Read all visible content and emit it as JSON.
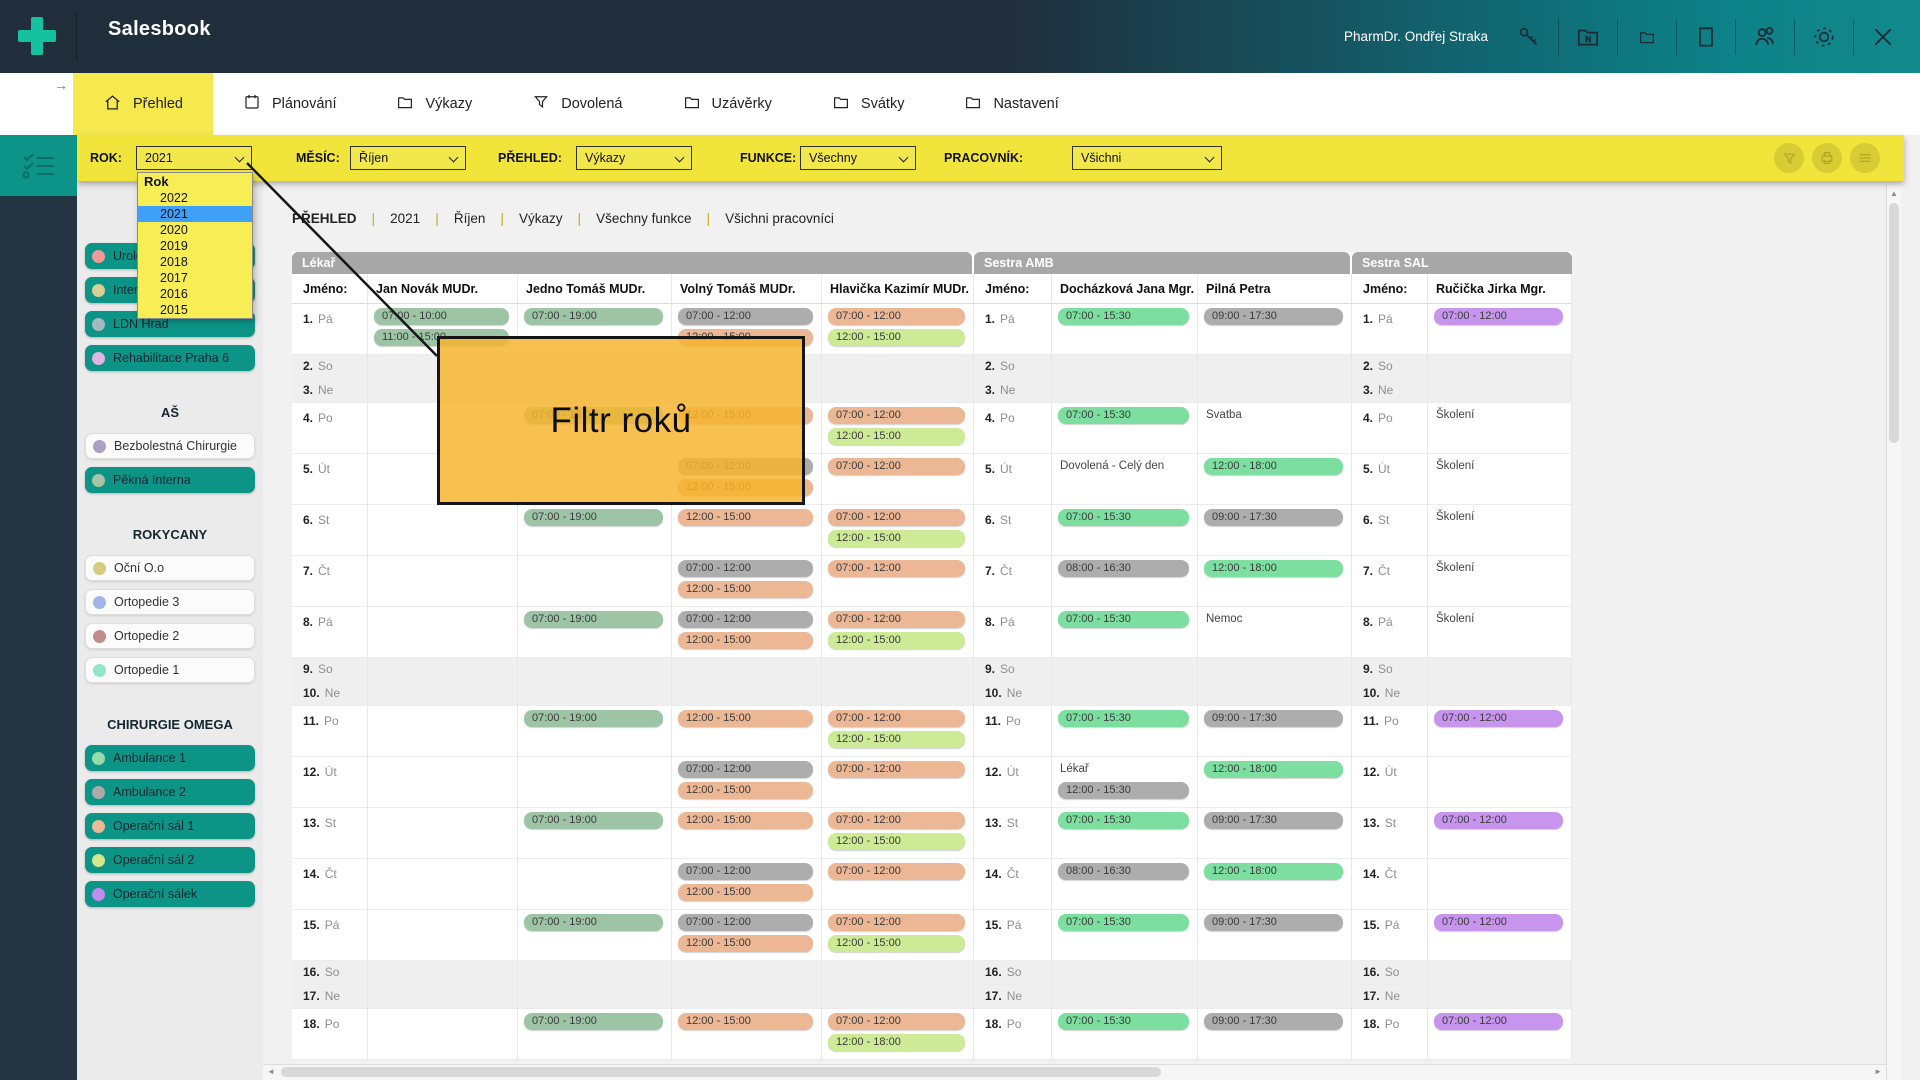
{
  "titlebar": {
    "app_title": "Salesbook",
    "user_name": "PharmDr. Ondřej Straka",
    "icons": [
      "key",
      "folder-new",
      "folder",
      "frame",
      "users",
      "gear",
      "close"
    ]
  },
  "tabs": {
    "items": [
      {
        "label": "Přehled",
        "icon": "home",
        "active": true
      },
      {
        "label": "Plánování",
        "icon": "calendar",
        "active": false
      },
      {
        "label": "Výkazy",
        "icon": "folder",
        "active": false
      },
      {
        "label": "Dovolená",
        "icon": "funnel",
        "active": false
      },
      {
        "label": "Uzávěrky",
        "icon": "folder",
        "active": false
      },
      {
        "label": "Svátky",
        "icon": "folder",
        "active": false
      },
      {
        "label": "Nastavení",
        "icon": "folder",
        "active": false
      }
    ]
  },
  "filterbar": {
    "filters": [
      {
        "label": "ROK:",
        "value": "2021"
      },
      {
        "label": "MĚSÍC:",
        "value": "Říjen"
      },
      {
        "label": "PŘEHLED:",
        "value": "Výkazy"
      },
      {
        "label": "FUNKCE:",
        "value": "Všechny"
      },
      {
        "label": "PRACOVNÍK:",
        "value": "Všichni"
      }
    ],
    "action_icons": [
      "filter",
      "print",
      "menu"
    ]
  },
  "year_dropdown": {
    "header": "Rok",
    "options": [
      "2022",
      "2021",
      "2020",
      "2019",
      "2018",
      "2017",
      "2016",
      "2015"
    ],
    "selected": "2021",
    "selected_color": "#3ea0f7"
  },
  "tooltip": {
    "text": "Filtr roků",
    "color": "#f7b42c"
  },
  "sidebar": {
    "groups": [
      {
        "title": null,
        "items": [
          {
            "label": "Urologie",
            "dot": "#f19a9a",
            "active": true
          },
          {
            "label": "Interna",
            "dot": "#d9cf96",
            "active": true
          },
          {
            "label": "LDN Hrad",
            "dot": "#a3bac1",
            "active": true
          },
          {
            "label": "Rehabilitace Praha 6",
            "dot": "#e0b6e0",
            "active": true
          }
        ]
      },
      {
        "title": "AŠ",
        "items": [
          {
            "label": "Bezbolestná Chirurgie",
            "dot": "#aa9fc6",
            "active": false
          },
          {
            "label": "Pěkná Interna",
            "dot": "#a8c2a8",
            "active": true
          }
        ]
      },
      {
        "title": "ROKYCANY",
        "items": [
          {
            "label": "Oční O.o",
            "dot": "#d6cb80",
            "active": false
          },
          {
            "label": "Ortopedie 3",
            "dot": "#a2b5ea",
            "active": false
          },
          {
            "label": "Ortopedie 2",
            "dot": "#bf8d8d",
            "active": false
          },
          {
            "label": "Ortopedie 1",
            "dot": "#92e5ca",
            "active": false
          }
        ]
      },
      {
        "title": "CHIRURGIE OMEGA",
        "items": [
          {
            "label": "Ambulance 1",
            "dot": "#96dcab",
            "active": true
          },
          {
            "label": "Ambulance 2",
            "dot": "#ababab",
            "active": true
          },
          {
            "label": "Operační sál 1",
            "dot": "#eabb97",
            "active": true
          },
          {
            "label": "Operační sál 2",
            "dot": "#d2e68d",
            "active": true
          },
          {
            "label": "Operační sálek",
            "dot": "#c28df0",
            "active": true
          }
        ]
      }
    ]
  },
  "breadcrumb": {
    "separator": "|",
    "items": [
      "PŘEHLED",
      "2021",
      "Říjen",
      "Výkazy",
      "Všechny funkce",
      "Všichni pracovníci"
    ]
  },
  "schedule": {
    "day_header": "Jméno:",
    "groups": [
      {
        "label": "Lékař",
        "members": [
          0,
          1,
          2,
          3
        ]
      },
      {
        "label": "Sestra AMB",
        "members": [
          4,
          5
        ]
      },
      {
        "label": "Sestra SAL",
        "members": [
          6
        ]
      }
    ],
    "days": [
      {
        "n": "1.",
        "d": "Pá",
        "weekend": false
      },
      {
        "n": "2.",
        "d": "So",
        "weekend": true
      },
      {
        "n": "3.",
        "d": "Ne",
        "weekend": true
      },
      {
        "n": "4.",
        "d": "Po",
        "weekend": false
      },
      {
        "n": "5.",
        "d": "Út",
        "weekend": false
      },
      {
        "n": "6.",
        "d": "St",
        "weekend": false
      },
      {
        "n": "7.",
        "d": "Čt",
        "weekend": false
      },
      {
        "n": "8.",
        "d": "Pá",
        "weekend": false
      },
      {
        "n": "9.",
        "d": "So",
        "weekend": true
      },
      {
        "n": "10.",
        "d": "Ne",
        "weekend": true
      },
      {
        "n": "11.",
        "d": "Po",
        "weekend": false
      },
      {
        "n": "12.",
        "d": "Út",
        "weekend": false
      },
      {
        "n": "13.",
        "d": "St",
        "weekend": false
      },
      {
        "n": "14.",
        "d": "Čt",
        "weekend": false
      },
      {
        "n": "15.",
        "d": "Pá",
        "weekend": false
      },
      {
        "n": "16.",
        "d": "So",
        "weekend": true
      },
      {
        "n": "17.",
        "d": "Ne",
        "weekend": true
      },
      {
        "n": "18.",
        "d": "Po",
        "weekend": false
      }
    ],
    "colors": {
      "sage": "#9dc4a5",
      "green": "#7cdfa0",
      "gray": "#adadad",
      "salmon": "#ecb795",
      "lime": "#cdea96",
      "purple": "#c795ee"
    },
    "employees": [
      {
        "name": "Jan Novák MUDr.",
        "entries": {
          "1": [
            [
              "07:00 - 10:00",
              "sage"
            ],
            [
              "11:00 - 15:00",
              "sage"
            ]
          ]
        }
      },
      {
        "name": "Jedno Tomáš MUDr.",
        "entries": {
          "1": [
            [
              "07:00 - 19:00",
              "sage"
            ]
          ],
          "4": [
            [
              "07:00 - 19:00",
              "sage"
            ]
          ],
          "6": [
            [
              "07:00 - 19:00",
              "sage"
            ]
          ],
          "8": [
            [
              "07:00 - 19:00",
              "sage"
            ]
          ],
          "11": [
            [
              "07:00 - 19:00",
              "sage"
            ]
          ],
          "13": [
            [
              "07:00 - 19:00",
              "sage"
            ]
          ],
          "15": [
            [
              "07:00 - 19:00",
              "sage"
            ]
          ],
          "18": [
            [
              "07:00 - 19:00",
              "sage"
            ]
          ]
        }
      },
      {
        "name": "Volný Tomáš MUDr.",
        "entries": {
          "1": [
            [
              "07:00 - 12:00",
              "gray"
            ],
            [
              "12:00 - 15:00",
              "salmon"
            ]
          ],
          "4": [
            [
              "12:00 - 15:00",
              "salmon"
            ]
          ],
          "5": [
            [
              "07:00 - 12:00",
              "gray"
            ],
            [
              "12:00 - 15:00",
              "salmon"
            ]
          ],
          "6": [
            [
              "12:00 - 15:00",
              "salmon"
            ]
          ],
          "7": [
            [
              "07:00 - 12:00",
              "gray"
            ],
            [
              "12:00 - 15:00",
              "salmon"
            ]
          ],
          "8": [
            [
              "07:00 - 12:00",
              "gray"
            ],
            [
              "12:00 - 15:00",
              "salmon"
            ]
          ],
          "11": [
            [
              "12:00 - 15:00",
              "salmon"
            ]
          ],
          "12": [
            [
              "07:00 - 12:00",
              "gray"
            ],
            [
              "12:00 - 15:00",
              "salmon"
            ]
          ],
          "13": [
            [
              "12:00 - 15:00",
              "salmon"
            ]
          ],
          "14": [
            [
              "07:00 - 12:00",
              "gray"
            ],
            [
              "12:00 - 15:00",
              "salmon"
            ]
          ],
          "15": [
            [
              "07:00 - 12:00",
              "gray"
            ],
            [
              "12:00 - 15:00",
              "salmon"
            ]
          ],
          "18": [
            [
              "12:00 - 15:00",
              "salmon"
            ]
          ]
        }
      },
      {
        "name": "Hlavička Kazimír MUDr.",
        "entries": {
          "1": [
            [
              "07:00 - 12:00",
              "salmon"
            ],
            [
              "12:00 - 15:00",
              "lime"
            ]
          ],
          "4": [
            [
              "07:00 - 12:00",
              "salmon"
            ],
            [
              "12:00 - 15:00",
              "lime"
            ]
          ],
          "5": [
            [
              "07:00 - 12:00",
              "salmon"
            ]
          ],
          "6": [
            [
              "07:00 - 12:00",
              "salmon"
            ],
            [
              "12:00 - 15:00",
              "lime"
            ]
          ],
          "7": [
            [
              "07:00 - 12:00",
              "salmon"
            ]
          ],
          "8": [
            [
              "07:00 - 12:00",
              "salmon"
            ],
            [
              "12:00 - 15:00",
              "lime"
            ]
          ],
          "11": [
            [
              "07:00 - 12:00",
              "salmon"
            ],
            [
              "12:00 - 15:00",
              "lime"
            ]
          ],
          "12": [
            [
              "07:00 - 12:00",
              "salmon"
            ]
          ],
          "13": [
            [
              "07:00 - 12:00",
              "salmon"
            ],
            [
              "12:00 - 15:00",
              "lime"
            ]
          ],
          "14": [
            [
              "07:00 - 12:00",
              "salmon"
            ]
          ],
          "15": [
            [
              "07:00 - 12:00",
              "salmon"
            ],
            [
              "12:00 - 15:00",
              "lime"
            ]
          ],
          "18": [
            [
              "07:00 - 12:00",
              "salmon"
            ],
            [
              "12:00 - 18:00",
              "lime"
            ]
          ]
        }
      },
      {
        "name": "Docházková Jana Mgr.",
        "entries": {
          "1": [
            [
              "07:00 - 15:30",
              "green"
            ]
          ],
          "4": [
            [
              "07:00 - 15:30",
              "green"
            ]
          ],
          "5": [
            [
              "Dovolená - Celý den",
              "text"
            ]
          ],
          "6": [
            [
              "07:00 - 15:30",
              "green"
            ]
          ],
          "7": [
            [
              "08:00 - 16:30",
              "gray"
            ]
          ],
          "8": [
            [
              "07:00 - 15:30",
              "green"
            ]
          ],
          "11": [
            [
              "07:00 - 15:30",
              "green"
            ]
          ],
          "12": [
            [
              "Lékař",
              "text"
            ],
            [
              "12:00 - 15:30",
              "gray"
            ]
          ],
          "13": [
            [
              "07:00 - 15:30",
              "green"
            ]
          ],
          "14": [
            [
              "08:00 - 16:30",
              "gray"
            ]
          ],
          "15": [
            [
              "07:00 - 15:30",
              "green"
            ]
          ],
          "18": [
            [
              "07:00 - 15:30",
              "green"
            ]
          ]
        }
      },
      {
        "name": "Pilná Petra",
        "entries": {
          "1": [
            [
              "09:00 - 17:30",
              "gray"
            ]
          ],
          "4": [
            [
              "Svatba",
              "text"
            ]
          ],
          "5": [
            [
              "12:00 - 18:00",
              "green"
            ]
          ],
          "6": [
            [
              "09:00 - 17:30",
              "gray"
            ]
          ],
          "7": [
            [
              "12:00 - 18:00",
              "green"
            ]
          ],
          "8": [
            [
              "Nemoc",
              "text"
            ]
          ],
          "11": [
            [
              "09:00 - 17:30",
              "gray"
            ]
          ],
          "12": [
            [
              "12:00 - 18:00",
              "green"
            ]
          ],
          "13": [
            [
              "09:00 - 17:30",
              "gray"
            ]
          ],
          "14": [
            [
              "12:00 - 18:00",
              "green"
            ]
          ],
          "15": [
            [
              "09:00 - 17:30",
              "gray"
            ]
          ],
          "18": [
            [
              "09:00 - 17:30",
              "gray"
            ]
          ]
        }
      },
      {
        "name": "Ručička Jirka Mgr.",
        "entries": {
          "1": [
            [
              "07:00 - 12:00",
              "purple"
            ]
          ],
          "4": [
            [
              "Školení",
              "text"
            ]
          ],
          "5": [
            [
              "Školení",
              "text"
            ]
          ],
          "6": [
            [
              "Školení",
              "text"
            ]
          ],
          "7": [
            [
              "Školení",
              "text"
            ]
          ],
          "8": [
            [
              "Školení",
              "text"
            ]
          ],
          "11": [
            [
              "07:00 - 12:00",
              "purple"
            ]
          ],
          "13": [
            [
              "07:00 - 12:00",
              "purple"
            ]
          ],
          "15": [
            [
              "07:00 - 12:00",
              "purple"
            ]
          ],
          "18": [
            [
              "07:00 - 12:00",
              "purple"
            ]
          ]
        }
      }
    ]
  }
}
